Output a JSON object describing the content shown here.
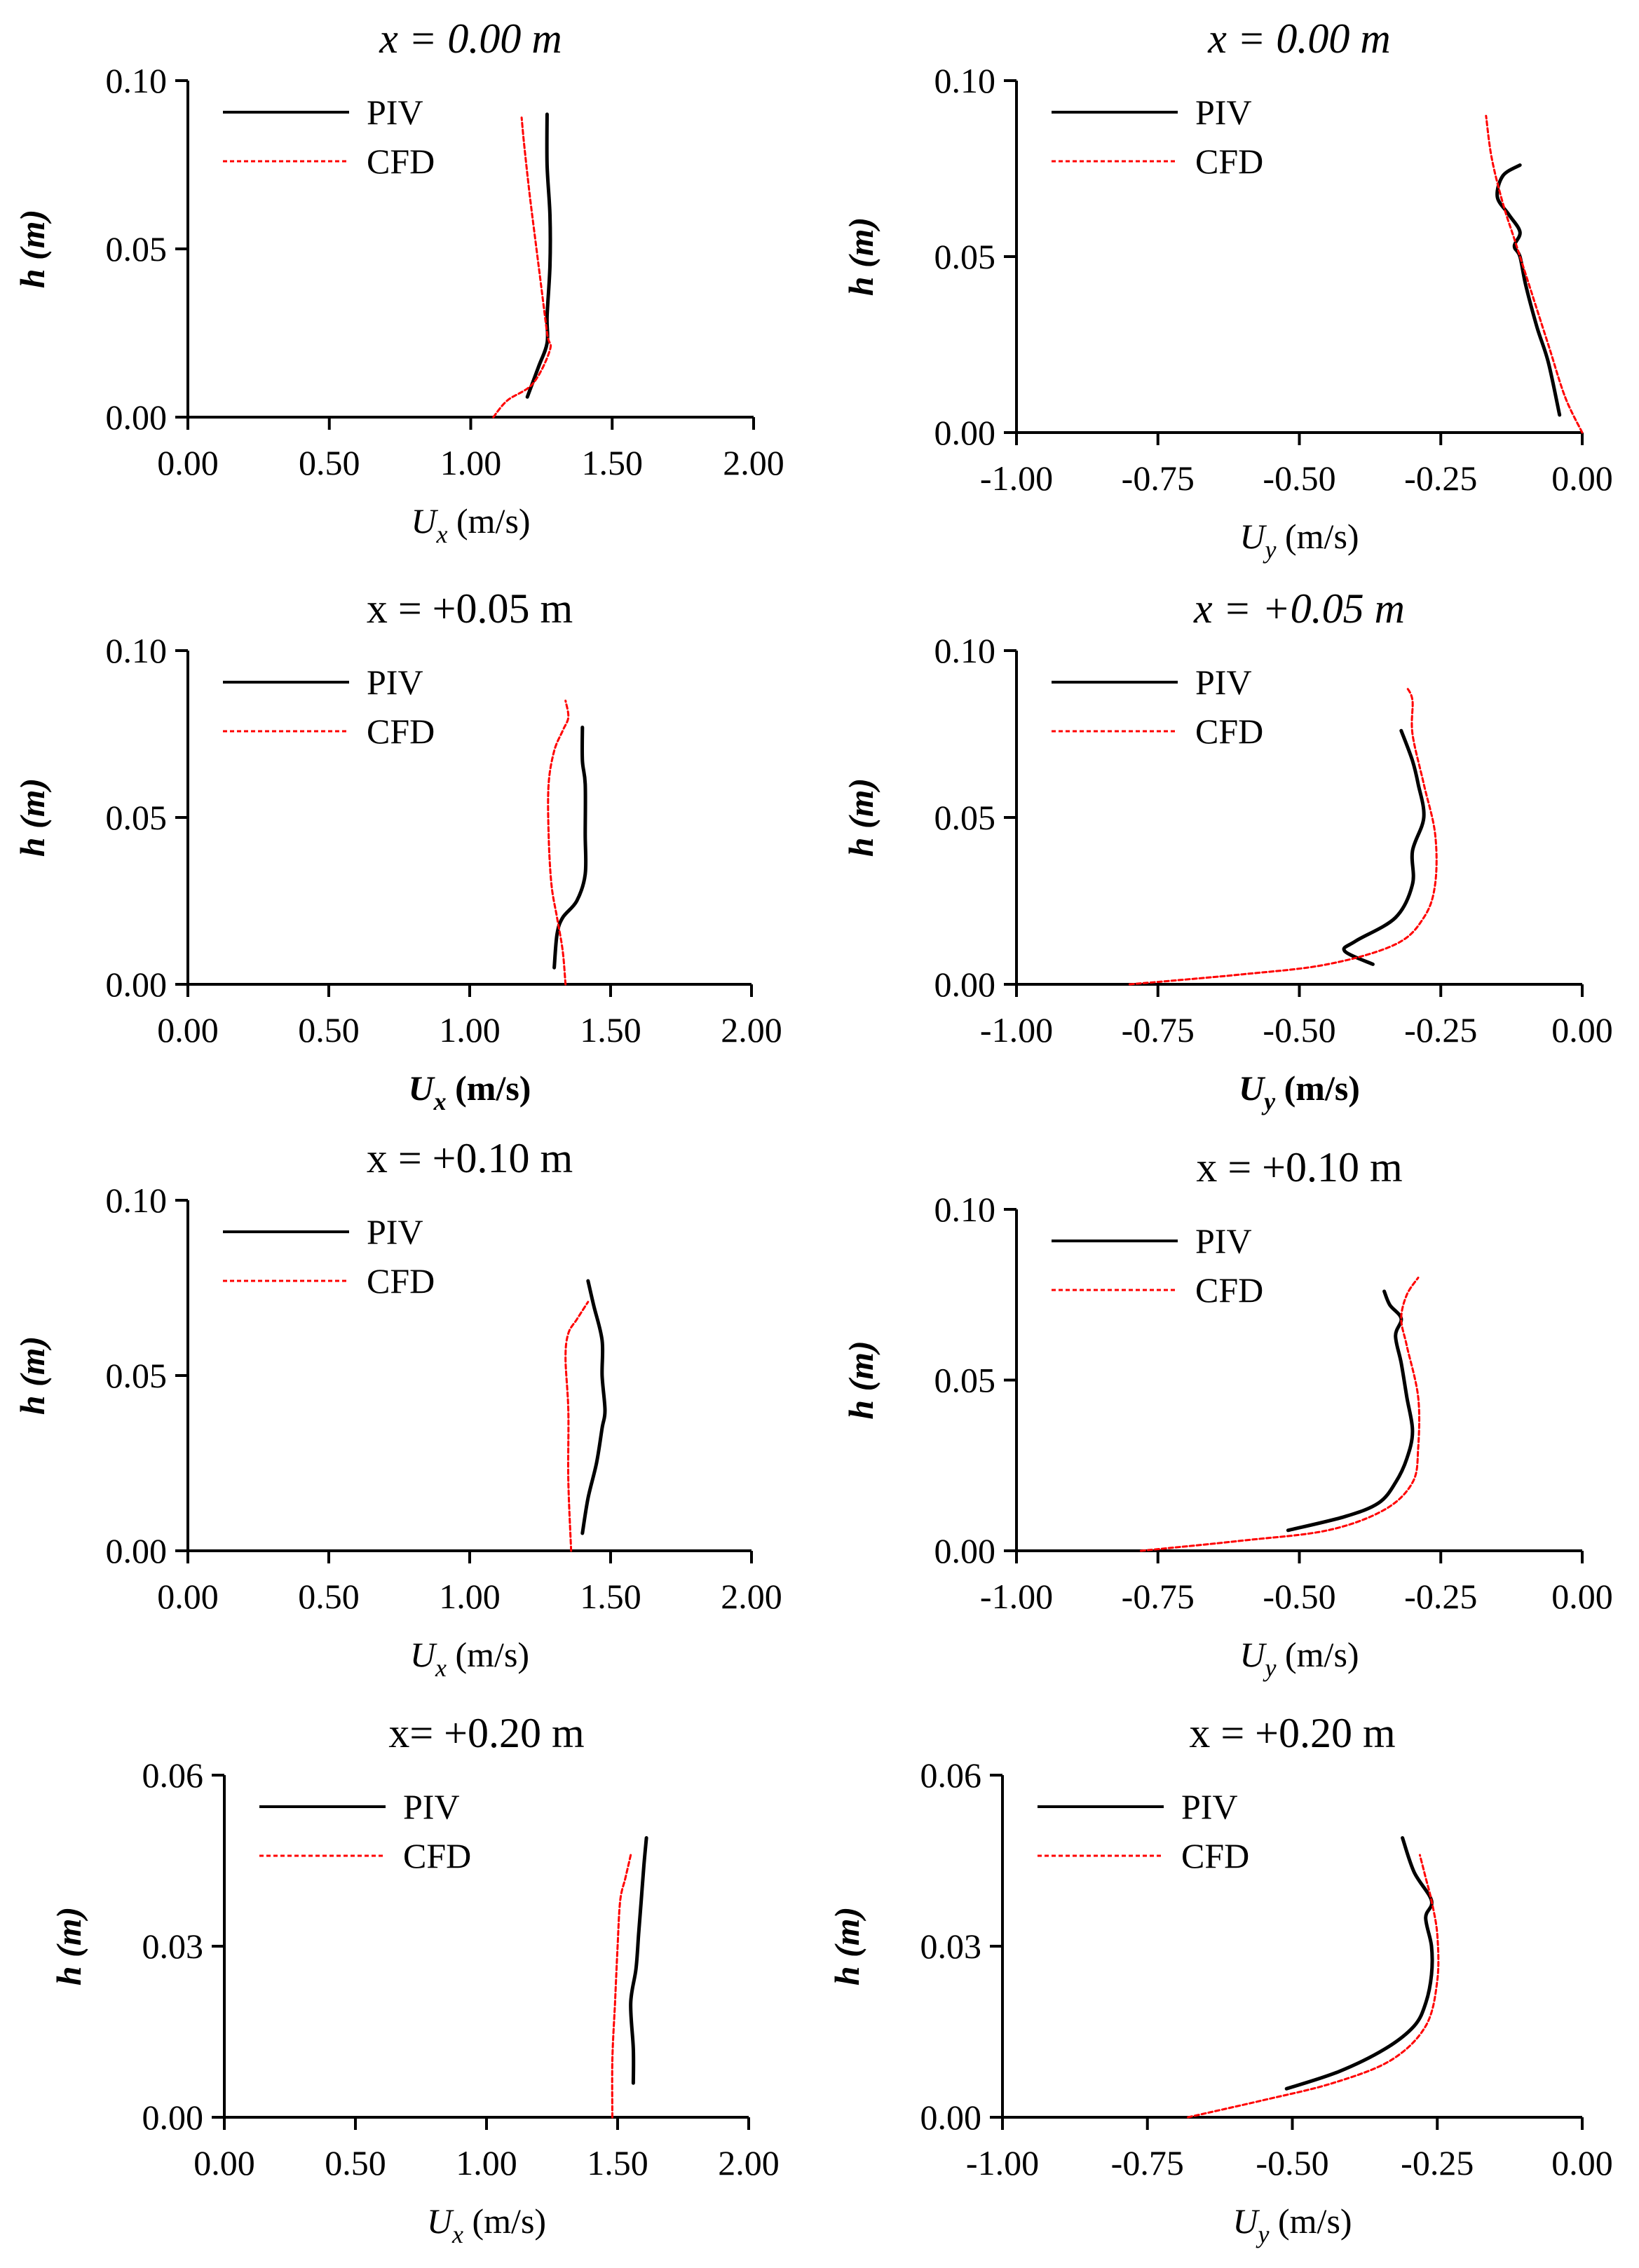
{
  "figure": {
    "background": "#ffffff",
    "piv_color": "#000000",
    "cfd_color": "#ff0000"
  },
  "chart_data": [
    {
      "type": "line",
      "panel": "row1-left",
      "title": "x = 0.00 m",
      "title_italic": true,
      "xlabel": "U_x (m/s)",
      "xlabel_main": "U",
      "xlabel_sub": "x",
      "xlabel_unit": " (m/s)",
      "ylabel": "h (m)",
      "ylabel_main": "h",
      "ylabel_unit": " (m)",
      "xlim": [
        0,
        2
      ],
      "ylim": [
        0,
        0.1
      ],
      "xticks": [
        0,
        0.5,
        1,
        1.5,
        2
      ],
      "yticks": [
        0,
        0.05,
        0.1
      ],
      "xtick_labels": [
        "0.00",
        "0.50",
        "1.00",
        "1.50",
        "2.00"
      ],
      "ytick_labels": [
        "0.00",
        "0.05",
        "0.10"
      ],
      "legend": {
        "position": "top-left",
        "entries": [
          "PIV",
          "CFD"
        ]
      },
      "series": [
        {
          "name": "PIV",
          "x": [
            1.2,
            1.24,
            1.27,
            1.27,
            1.28,
            1.28,
            1.27,
            1.27
          ],
          "y": [
            0.006,
            0.015,
            0.022,
            0.03,
            0.045,
            0.06,
            0.075,
            0.09
          ]
        },
        {
          "name": "CFD",
          "x": [
            1.08,
            1.13,
            1.22,
            1.28,
            1.27,
            1.24,
            1.21,
            1.19,
            1.18
          ],
          "y": [
            0.0,
            0.005,
            0.01,
            0.02,
            0.025,
            0.045,
            0.065,
            0.08,
            0.089
          ]
        }
      ]
    },
    {
      "type": "line",
      "panel": "row1-right",
      "title": "x = 0.00 m",
      "title_italic": true,
      "xlabel": "U_y (m/s)",
      "xlabel_main": "U",
      "xlabel_sub": "y",
      "xlabel_unit": " (m/s)",
      "ylabel": "h (m)",
      "ylabel_main": "h",
      "ylabel_unit": " (m)",
      "xlim": [
        -1,
        0
      ],
      "ylim": [
        0,
        0.1
      ],
      "xticks": [
        -1,
        -0.75,
        -0.5,
        -0.25,
        0
      ],
      "yticks": [
        0,
        0.05,
        0.1
      ],
      "xtick_labels": [
        "-1.00",
        "-0.75",
        "-0.50",
        "-0.25",
        "0.00"
      ],
      "ytick_labels": [
        "0.00",
        "0.05",
        "0.10"
      ],
      "legend": {
        "position": "top-left",
        "entries": [
          "PIV",
          "CFD"
        ]
      },
      "series": [
        {
          "name": "PIV",
          "x": [
            -0.04,
            -0.06,
            -0.08,
            -0.1,
            -0.11,
            -0.12,
            -0.11,
            -0.13,
            -0.15,
            -0.14,
            -0.11
          ],
          "y": [
            0.005,
            0.02,
            0.03,
            0.042,
            0.05,
            0.053,
            0.057,
            0.062,
            0.067,
            0.073,
            0.076
          ]
        },
        {
          "name": "CFD",
          "x": [
            0.0,
            -0.03,
            -0.06,
            -0.09,
            -0.12,
            -0.14,
            -0.16,
            -0.17
          ],
          "y": [
            0.0,
            0.01,
            0.025,
            0.04,
            0.055,
            0.065,
            0.078,
            0.09
          ]
        }
      ]
    },
    {
      "type": "line",
      "panel": "row2-left",
      "title": "x = +0.05 m",
      "title_italic": false,
      "xlabel": "U_x (m/s)",
      "xlabel_main": "U",
      "xlabel_sub": "x",
      "xlabel_unit": " (m/s)",
      "xlabel_bold": true,
      "ylabel": "h (m)",
      "ylabel_main": "h",
      "ylabel_unit": " (m)",
      "xlim": [
        0,
        2
      ],
      "ylim": [
        0,
        0.1
      ],
      "xticks": [
        0,
        0.5,
        1,
        1.5,
        2
      ],
      "yticks": [
        0,
        0.05,
        0.1
      ],
      "xtick_labels": [
        "0.00",
        "0.50",
        "1.00",
        "1.50",
        "2.00"
      ],
      "ytick_labels": [
        "0.00",
        "0.05",
        "0.10"
      ],
      "legend": {
        "position": "top-left",
        "entries": [
          "PIV",
          "CFD"
        ]
      },
      "series": [
        {
          "name": "PIV",
          "x": [
            1.3,
            1.31,
            1.33,
            1.38,
            1.41,
            1.41,
            1.41,
            1.4,
            1.4
          ],
          "y": [
            0.005,
            0.015,
            0.02,
            0.025,
            0.033,
            0.045,
            0.06,
            0.067,
            0.077
          ]
        },
        {
          "name": "CFD",
          "x": [
            1.34,
            1.33,
            1.31,
            1.29,
            1.28,
            1.28,
            1.3,
            1.33,
            1.35,
            1.34
          ],
          "y": [
            0.0,
            0.01,
            0.02,
            0.03,
            0.045,
            0.06,
            0.07,
            0.076,
            0.08,
            0.085
          ]
        }
      ]
    },
    {
      "type": "line",
      "panel": "row2-right",
      "title": "x = +0.05 m",
      "title_italic": true,
      "xlabel": "U_y (m/s)",
      "xlabel_main": "U",
      "xlabel_sub": "y",
      "xlabel_unit": " (m/s)",
      "xlabel_bold": true,
      "ylabel": "h (m)",
      "ylabel_main": "h",
      "ylabel_unit": " (m)",
      "xlim": [
        -1,
        0
      ],
      "ylim": [
        0,
        0.1
      ],
      "xticks": [
        -1,
        -0.75,
        -0.5,
        -0.25,
        0
      ],
      "yticks": [
        0,
        0.05,
        0.1
      ],
      "xtick_labels": [
        "-1.00",
        "-0.75",
        "-0.50",
        "-0.25",
        "0.00"
      ],
      "ytick_labels": [
        "0.00",
        "0.05",
        "0.10"
      ],
      "legend": {
        "position": "top-left",
        "entries": [
          "PIV",
          "CFD"
        ]
      },
      "series": [
        {
          "name": "PIV",
          "x": [
            -0.37,
            -0.42,
            -0.4,
            -0.33,
            -0.3,
            -0.3,
            -0.28,
            -0.29,
            -0.3,
            -0.32
          ],
          "y": [
            0.006,
            0.01,
            0.013,
            0.02,
            0.03,
            0.04,
            0.05,
            0.06,
            0.067,
            0.076
          ]
        },
        {
          "name": "CFD",
          "x": [
            -0.8,
            -0.6,
            -0.45,
            -0.33,
            -0.28,
            -0.26,
            -0.26,
            -0.28,
            -0.3,
            -0.3,
            -0.31
          ],
          "y": [
            0.0,
            0.003,
            0.006,
            0.012,
            0.02,
            0.03,
            0.045,
            0.06,
            0.075,
            0.085,
            0.089
          ]
        }
      ]
    },
    {
      "type": "line",
      "panel": "row3-left",
      "title": "x = +0.10 m",
      "title_italic": false,
      "xlabel": "U_x (m/s)",
      "xlabel_main": "U",
      "xlabel_sub": "x",
      "xlabel_unit": " (m/s)",
      "ylabel": "h (m)",
      "ylabel_main": "h",
      "ylabel_unit": " (m)",
      "xlim": [
        0,
        2
      ],
      "ylim": [
        0,
        0.1
      ],
      "xticks": [
        0,
        0.5,
        1,
        1.5,
        2
      ],
      "yticks": [
        0,
        0.05,
        0.1
      ],
      "xtick_labels": [
        "0.00",
        "0.50",
        "1.00",
        "1.50",
        "2.00"
      ],
      "ytick_labels": [
        "0.00",
        "0.05",
        "0.10"
      ],
      "legend": {
        "position": "top-left",
        "entries": [
          "PIV",
          "CFD"
        ]
      },
      "series": [
        {
          "name": "PIV",
          "x": [
            1.4,
            1.42,
            1.45,
            1.47,
            1.48,
            1.47,
            1.47,
            1.44,
            1.42
          ],
          "y": [
            0.005,
            0.015,
            0.025,
            0.035,
            0.04,
            0.05,
            0.06,
            0.07,
            0.077
          ]
        },
        {
          "name": "CFD",
          "x": [
            1.36,
            1.35,
            1.35,
            1.34,
            1.35,
            1.38,
            1.42
          ],
          "y": [
            0.0,
            0.02,
            0.04,
            0.055,
            0.062,
            0.066,
            0.071
          ]
        }
      ]
    },
    {
      "type": "line",
      "panel": "row3-right",
      "title": "x = +0.10 m",
      "title_italic": false,
      "xlabel": "U_y (m/s)",
      "xlabel_main": "U",
      "xlabel_sub": "y",
      "xlabel_unit": " (m/s)",
      "ylabel": "h (m)",
      "ylabel_main": "h",
      "ylabel_unit": " (m)",
      "xlim": [
        -1,
        0
      ],
      "ylim": [
        0,
        0.1
      ],
      "xticks": [
        -1,
        -0.75,
        -0.5,
        -0.25,
        0
      ],
      "yticks": [
        0,
        0.05,
        0.1
      ],
      "xtick_labels": [
        "-1.00",
        "-0.75",
        "-0.50",
        "-0.25",
        "0.00"
      ],
      "ytick_labels": [
        "0.00",
        "0.05",
        "0.10"
      ],
      "legend": {
        "position": "top-left",
        "entries": [
          "PIV",
          "CFD"
        ]
      },
      "series": [
        {
          "name": "PIV",
          "x": [
            -0.52,
            -0.42,
            -0.36,
            -0.33,
            -0.31,
            -0.3,
            -0.31,
            -0.32,
            -0.33,
            -0.32,
            -0.34,
            -0.35
          ],
          "y": [
            0.006,
            0.01,
            0.014,
            0.02,
            0.027,
            0.035,
            0.045,
            0.055,
            0.063,
            0.068,
            0.072,
            0.076
          ]
        },
        {
          "name": "CFD",
          "x": [
            -0.78,
            -0.6,
            -0.45,
            -0.35,
            -0.3,
            -0.29,
            -0.29,
            -0.31,
            -0.32,
            -0.31,
            -0.29
          ],
          "y": [
            0.0,
            0.003,
            0.006,
            0.012,
            0.02,
            0.03,
            0.045,
            0.06,
            0.068,
            0.075,
            0.08
          ]
        }
      ]
    },
    {
      "type": "line",
      "panel": "row4-left",
      "title": "x= +0.20 m",
      "title_italic": false,
      "xlabel": "U_x (m/s)",
      "xlabel_main": "U",
      "xlabel_sub": "x",
      "xlabel_unit": " (m/s)",
      "ylabel": "h (m)",
      "ylabel_main": "h",
      "ylabel_unit": " (m)",
      "xlim": [
        0,
        2
      ],
      "ylim": [
        0,
        0.06
      ],
      "xticks": [
        0,
        0.5,
        1,
        1.5,
        2
      ],
      "yticks": [
        0,
        0.03,
        0.06
      ],
      "xtick_labels": [
        "0.00",
        "0.50",
        "1.00",
        "1.50",
        "2.00"
      ],
      "ytick_labels": [
        "0.00",
        "0.03",
        "0.06"
      ],
      "legend": {
        "position": "top-left",
        "entries": [
          "PIV",
          "CFD"
        ]
      },
      "series": [
        {
          "name": "PIV",
          "x": [
            1.56,
            1.56,
            1.55,
            1.57,
            1.58,
            1.59,
            1.6,
            1.61
          ],
          "y": [
            0.006,
            0.012,
            0.02,
            0.026,
            0.032,
            0.038,
            0.044,
            0.049
          ]
        },
        {
          "name": "CFD",
          "x": [
            1.48,
            1.48,
            1.49,
            1.5,
            1.51,
            1.53,
            1.55
          ],
          "y": [
            0.0,
            0.01,
            0.02,
            0.03,
            0.038,
            0.042,
            0.046
          ]
        }
      ]
    },
    {
      "type": "line",
      "panel": "row4-right",
      "title": "x = +0.20 m",
      "title_italic": false,
      "xlabel": "U_y (m/s)",
      "xlabel_main": "U",
      "xlabel_sub": "y",
      "xlabel_unit": " (m/s)",
      "ylabel": "h (m)",
      "ylabel_main": "h",
      "ylabel_unit": " (m)",
      "xlim": [
        -1,
        0
      ],
      "ylim": [
        0,
        0.06
      ],
      "xticks": [
        -1,
        -0.75,
        -0.5,
        -0.25,
        0
      ],
      "yticks": [
        0,
        0.03,
        0.06
      ],
      "xtick_labels": [
        "-1.00",
        "-0.75",
        "-0.50",
        "-0.25",
        "0.00"
      ],
      "ytick_labels": [
        "0.00",
        "0.03",
        "0.06"
      ],
      "legend": {
        "position": "top-left",
        "entries": [
          "PIV",
          "CFD"
        ]
      },
      "series": [
        {
          "name": "PIV",
          "x": [
            -0.51,
            -0.42,
            -0.34,
            -0.29,
            -0.27,
            -0.26,
            -0.26,
            -0.27,
            -0.26,
            -0.29,
            -0.31
          ],
          "y": [
            0.005,
            0.008,
            0.012,
            0.016,
            0.02,
            0.025,
            0.03,
            0.035,
            0.038,
            0.043,
            0.049
          ]
        },
        {
          "name": "CFD",
          "x": [
            -0.68,
            -0.55,
            -0.43,
            -0.33,
            -0.27,
            -0.25,
            -0.25,
            -0.26,
            -0.27,
            -0.28
          ],
          "y": [
            0.0,
            0.003,
            0.006,
            0.01,
            0.016,
            0.024,
            0.032,
            0.038,
            0.042,
            0.046
          ]
        }
      ]
    }
  ]
}
